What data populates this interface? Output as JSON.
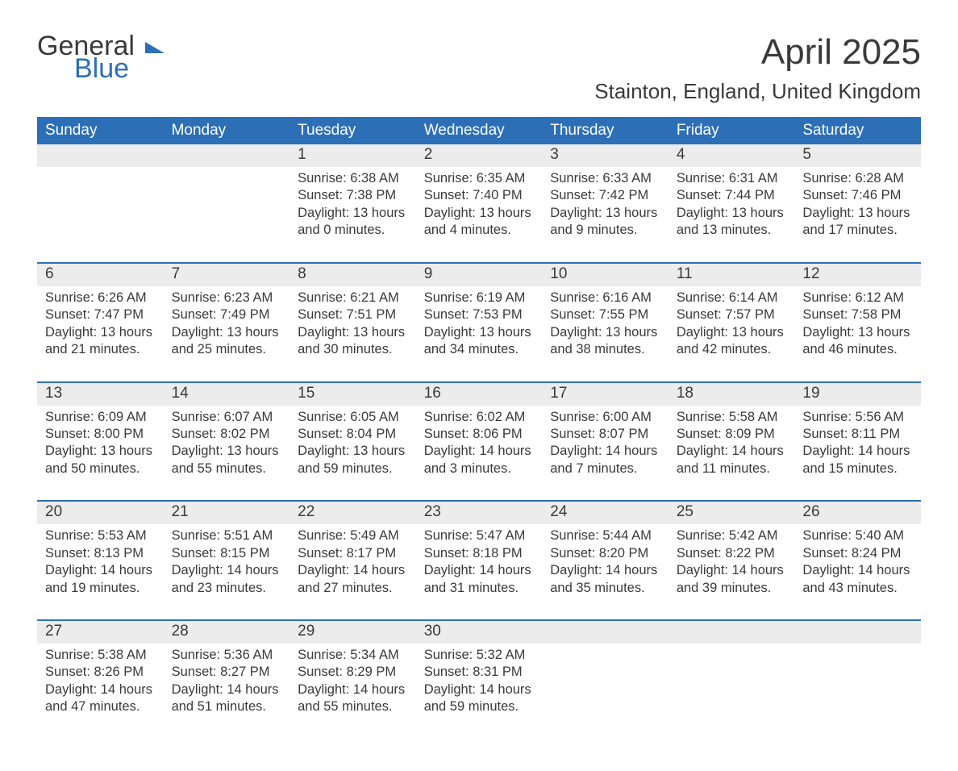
{
  "logo": {
    "line1": "General",
    "line2": "Blue"
  },
  "title": "April 2025",
  "location": "Stainton, England, United Kingdom",
  "colors": {
    "header_bg": "#2d6fb6",
    "header_text": "#ffffff",
    "daynum_bg": "#ececec",
    "row_divider": "#2d6fb6",
    "body_text": "#3a3a3a",
    "logo_blue": "#2d6fb6"
  },
  "weekdays": [
    "Sunday",
    "Monday",
    "Tuesday",
    "Wednesday",
    "Thursday",
    "Friday",
    "Saturday"
  ],
  "weeks": [
    [
      {
        "day": "",
        "sunrise": "",
        "sunset": "",
        "daylight": ""
      },
      {
        "day": "",
        "sunrise": "",
        "sunset": "",
        "daylight": ""
      },
      {
        "day": "1",
        "sunrise": "Sunrise: 6:38 AM",
        "sunset": "Sunset: 7:38 PM",
        "daylight": "Daylight: 13 hours and 0 minutes."
      },
      {
        "day": "2",
        "sunrise": "Sunrise: 6:35 AM",
        "sunset": "Sunset: 7:40 PM",
        "daylight": "Daylight: 13 hours and 4 minutes."
      },
      {
        "day": "3",
        "sunrise": "Sunrise: 6:33 AM",
        "sunset": "Sunset: 7:42 PM",
        "daylight": "Daylight: 13 hours and 9 minutes."
      },
      {
        "day": "4",
        "sunrise": "Sunrise: 6:31 AM",
        "sunset": "Sunset: 7:44 PM",
        "daylight": "Daylight: 13 hours and 13 minutes."
      },
      {
        "day": "5",
        "sunrise": "Sunrise: 6:28 AM",
        "sunset": "Sunset: 7:46 PM",
        "daylight": "Daylight: 13 hours and 17 minutes."
      }
    ],
    [
      {
        "day": "6",
        "sunrise": "Sunrise: 6:26 AM",
        "sunset": "Sunset: 7:47 PM",
        "daylight": "Daylight: 13 hours and 21 minutes."
      },
      {
        "day": "7",
        "sunrise": "Sunrise: 6:23 AM",
        "sunset": "Sunset: 7:49 PM",
        "daylight": "Daylight: 13 hours and 25 minutes."
      },
      {
        "day": "8",
        "sunrise": "Sunrise: 6:21 AM",
        "sunset": "Sunset: 7:51 PM",
        "daylight": "Daylight: 13 hours and 30 minutes."
      },
      {
        "day": "9",
        "sunrise": "Sunrise: 6:19 AM",
        "sunset": "Sunset: 7:53 PM",
        "daylight": "Daylight: 13 hours and 34 minutes."
      },
      {
        "day": "10",
        "sunrise": "Sunrise: 6:16 AM",
        "sunset": "Sunset: 7:55 PM",
        "daylight": "Daylight: 13 hours and 38 minutes."
      },
      {
        "day": "11",
        "sunrise": "Sunrise: 6:14 AM",
        "sunset": "Sunset: 7:57 PM",
        "daylight": "Daylight: 13 hours and 42 minutes."
      },
      {
        "day": "12",
        "sunrise": "Sunrise: 6:12 AM",
        "sunset": "Sunset: 7:58 PM",
        "daylight": "Daylight: 13 hours and 46 minutes."
      }
    ],
    [
      {
        "day": "13",
        "sunrise": "Sunrise: 6:09 AM",
        "sunset": "Sunset: 8:00 PM",
        "daylight": "Daylight: 13 hours and 50 minutes."
      },
      {
        "day": "14",
        "sunrise": "Sunrise: 6:07 AM",
        "sunset": "Sunset: 8:02 PM",
        "daylight": "Daylight: 13 hours and 55 minutes."
      },
      {
        "day": "15",
        "sunrise": "Sunrise: 6:05 AM",
        "sunset": "Sunset: 8:04 PM",
        "daylight": "Daylight: 13 hours and 59 minutes."
      },
      {
        "day": "16",
        "sunrise": "Sunrise: 6:02 AM",
        "sunset": "Sunset: 8:06 PM",
        "daylight": "Daylight: 14 hours and 3 minutes."
      },
      {
        "day": "17",
        "sunrise": "Sunrise: 6:00 AM",
        "sunset": "Sunset: 8:07 PM",
        "daylight": "Daylight: 14 hours and 7 minutes."
      },
      {
        "day": "18",
        "sunrise": "Sunrise: 5:58 AM",
        "sunset": "Sunset: 8:09 PM",
        "daylight": "Daylight: 14 hours and 11 minutes."
      },
      {
        "day": "19",
        "sunrise": "Sunrise: 5:56 AM",
        "sunset": "Sunset: 8:11 PM",
        "daylight": "Daylight: 14 hours and 15 minutes."
      }
    ],
    [
      {
        "day": "20",
        "sunrise": "Sunrise: 5:53 AM",
        "sunset": "Sunset: 8:13 PM",
        "daylight": "Daylight: 14 hours and 19 minutes."
      },
      {
        "day": "21",
        "sunrise": "Sunrise: 5:51 AM",
        "sunset": "Sunset: 8:15 PM",
        "daylight": "Daylight: 14 hours and 23 minutes."
      },
      {
        "day": "22",
        "sunrise": "Sunrise: 5:49 AM",
        "sunset": "Sunset: 8:17 PM",
        "daylight": "Daylight: 14 hours and 27 minutes."
      },
      {
        "day": "23",
        "sunrise": "Sunrise: 5:47 AM",
        "sunset": "Sunset: 8:18 PM",
        "daylight": "Daylight: 14 hours and 31 minutes."
      },
      {
        "day": "24",
        "sunrise": "Sunrise: 5:44 AM",
        "sunset": "Sunset: 8:20 PM",
        "daylight": "Daylight: 14 hours and 35 minutes."
      },
      {
        "day": "25",
        "sunrise": "Sunrise: 5:42 AM",
        "sunset": "Sunset: 8:22 PM",
        "daylight": "Daylight: 14 hours and 39 minutes."
      },
      {
        "day": "26",
        "sunrise": "Sunrise: 5:40 AM",
        "sunset": "Sunset: 8:24 PM",
        "daylight": "Daylight: 14 hours and 43 minutes."
      }
    ],
    [
      {
        "day": "27",
        "sunrise": "Sunrise: 5:38 AM",
        "sunset": "Sunset: 8:26 PM",
        "daylight": "Daylight: 14 hours and 47 minutes."
      },
      {
        "day": "28",
        "sunrise": "Sunrise: 5:36 AM",
        "sunset": "Sunset: 8:27 PM",
        "daylight": "Daylight: 14 hours and 51 minutes."
      },
      {
        "day": "29",
        "sunrise": "Sunrise: 5:34 AM",
        "sunset": "Sunset: 8:29 PM",
        "daylight": "Daylight: 14 hours and 55 minutes."
      },
      {
        "day": "30",
        "sunrise": "Sunrise: 5:32 AM",
        "sunset": "Sunset: 8:31 PM",
        "daylight": "Daylight: 14 hours and 59 minutes."
      },
      {
        "day": "",
        "sunrise": "",
        "sunset": "",
        "daylight": ""
      },
      {
        "day": "",
        "sunrise": "",
        "sunset": "",
        "daylight": ""
      },
      {
        "day": "",
        "sunrise": "",
        "sunset": "",
        "daylight": ""
      }
    ]
  ]
}
